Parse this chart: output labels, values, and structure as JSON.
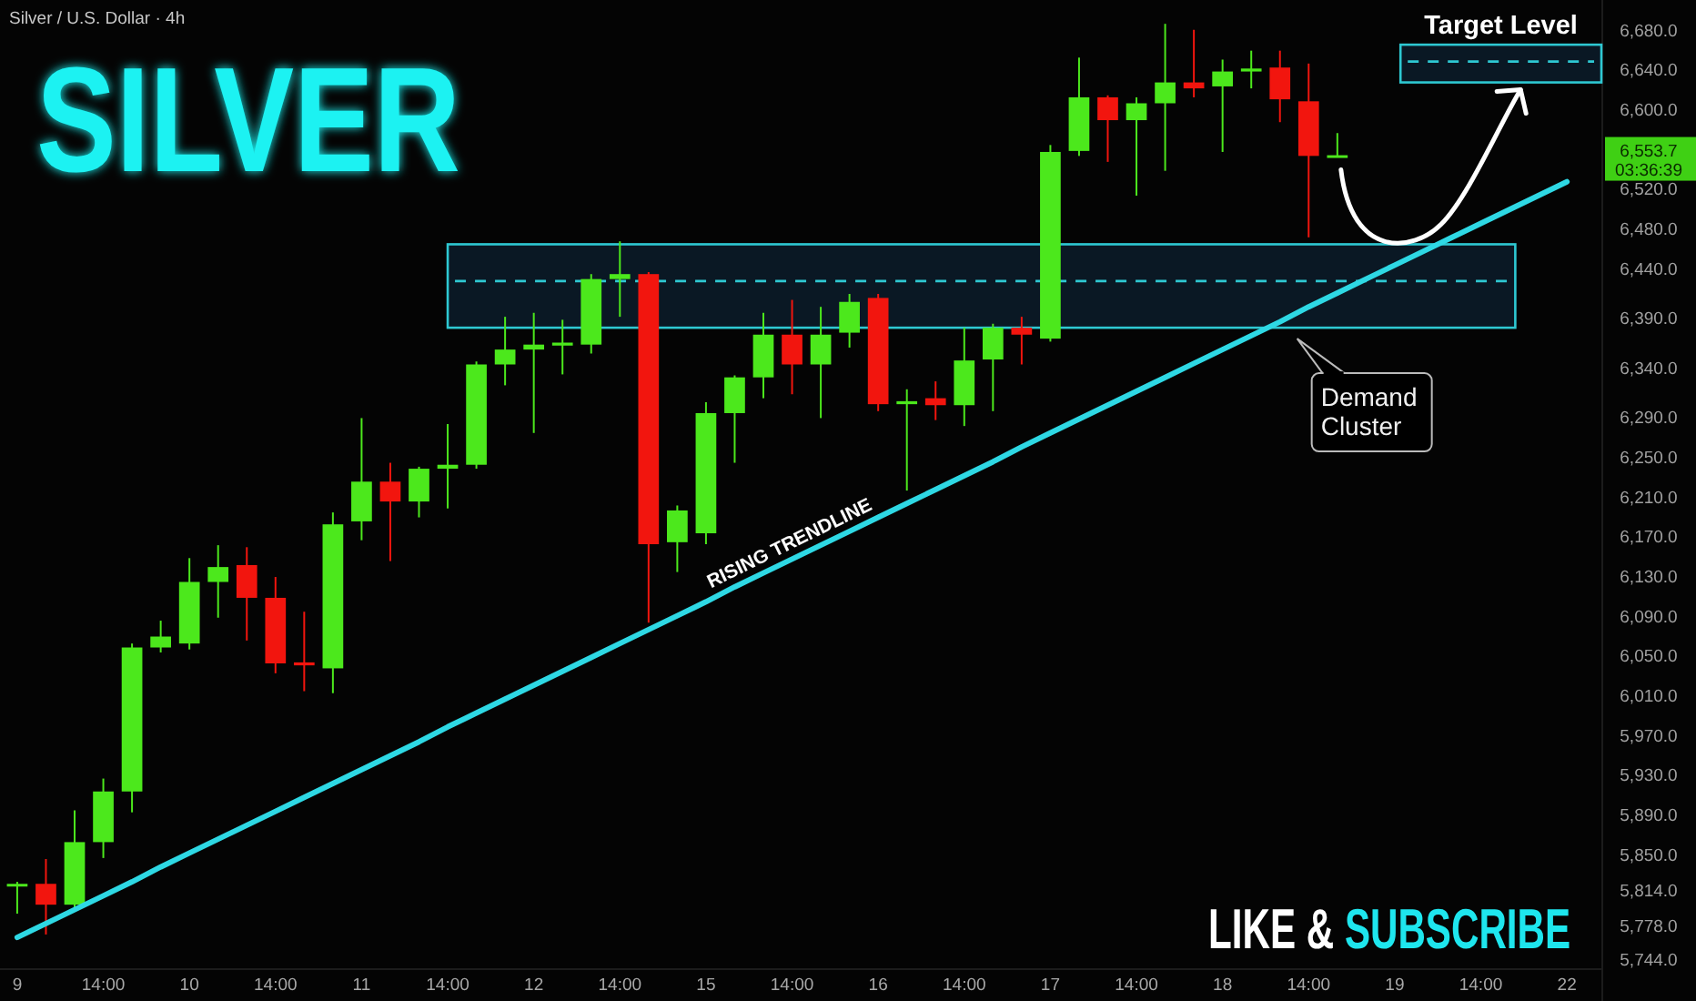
{
  "chart_data": {
    "type": "candlestick",
    "title": "SILVER",
    "subtitle": "Silver / U.S. Dollar · 4h",
    "categories": [
      "9",
      null,
      null,
      "14:00",
      null,
      null,
      "10",
      null,
      null,
      "14:00",
      null,
      null,
      "11",
      null,
      null,
      "14:00",
      null,
      null,
      "12",
      null,
      null,
      "14:00",
      null,
      null,
      "15",
      null,
      null,
      "14:00",
      null,
      null,
      "16",
      null,
      null,
      "14:00",
      null,
      null,
      "17",
      null,
      null,
      "14:00",
      null,
      null,
      "18",
      null,
      null,
      "14:00",
      null,
      null,
      "19",
      null,
      null,
      "14:00",
      null,
      null,
      "22"
    ],
    "ohlc": [
      [
        5818,
        5822,
        5790,
        5820
      ],
      [
        5820,
        5845,
        5769,
        5799
      ],
      [
        5799,
        5894,
        5792,
        5862
      ],
      [
        5862,
        5926,
        5846,
        5913
      ],
      [
        5913,
        6062,
        5892,
        6058
      ],
      [
        6058,
        6085,
        6053,
        6069
      ],
      [
        6062,
        6148,
        6056,
        6124
      ],
      [
        6124,
        6161,
        6088,
        6139
      ],
      [
        6141,
        6159,
        6065,
        6108
      ],
      [
        6108,
        6129,
        6032,
        6042
      ],
      [
        6043,
        6094,
        6014,
        6040
      ],
      [
        6037,
        6194,
        6012,
        6182
      ],
      [
        6185,
        6289,
        6166,
        6225
      ],
      [
        6225,
        6244,
        6145,
        6205
      ],
      [
        6205,
        6240,
        6189,
        6238
      ],
      [
        6238,
        6283,
        6198,
        6242
      ],
      [
        6242,
        6346,
        6238,
        6343
      ],
      [
        6343,
        6391,
        6322,
        6358
      ],
      [
        6358,
        6395,
        6274,
        6363
      ],
      [
        6362,
        6388,
        6333,
        6365
      ],
      [
        6363,
        6434,
        6354,
        6429
      ],
      [
        6429,
        6467,
        6391,
        6434
      ],
      [
        6434,
        6436,
        6083,
        6162
      ],
      [
        6164,
        6201,
        6134,
        6196
      ],
      [
        6173,
        6305,
        6162,
        6294
      ],
      [
        6294,
        6332,
        6244,
        6330
      ],
      [
        6330,
        6395,
        6309,
        6373
      ],
      [
        6373,
        6408,
        6313,
        6343
      ],
      [
        6343,
        6401,
        6289,
        6373
      ],
      [
        6375,
        6414,
        6360,
        6406
      ],
      [
        6410,
        6414,
        6296,
        6303
      ],
      [
        6303,
        6318,
        6216,
        6306
      ],
      [
        6309,
        6326,
        6287,
        6302
      ],
      [
        6302,
        6380,
        6281,
        6347
      ],
      [
        6348,
        6384,
        6296,
        6380
      ],
      [
        6380,
        6391,
        6343,
        6373
      ],
      [
        6369,
        6564,
        6366,
        6557
      ],
      [
        6558,
        6652,
        6553,
        6612
      ],
      [
        6612,
        6614,
        6547,
        6589
      ],
      [
        6589,
        6612,
        6513,
        6606
      ],
      [
        6606,
        6686,
        6538,
        6627
      ],
      [
        6627,
        6680,
        6612,
        6621
      ],
      [
        6623,
        6650,
        6557,
        6638
      ],
      [
        6638,
        6659,
        6621,
        6641
      ],
      [
        6642,
        6659,
        6587,
        6610
      ],
      [
        6608,
        6646,
        6471,
        6553
      ],
      [
        6553,
        6576,
        6552,
        6553.7
      ],
      null,
      null,
      null,
      null,
      null,
      null,
      null,
      null
    ],
    "colors": [
      "#4ce81c",
      "#f2150e",
      "#4ce81c",
      "#4ce81c",
      "#4ce81c",
      "#4ce81c",
      "#4ce81c",
      "#4ce81c",
      "#f2150e",
      "#f2150e",
      "#f2150e",
      "#4ce81c",
      "#4ce81c",
      "#f2150e",
      "#4ce81c",
      "#4ce81c",
      "#4ce81c",
      "#4ce81c",
      "#4ce81c",
      "#4ce81c",
      "#4ce81c",
      "#4ce81c",
      "#f2150e",
      "#4ce81c",
      "#4ce81c",
      "#4ce81c",
      "#4ce81c",
      "#f2150e",
      "#4ce81c",
      "#4ce81c",
      "#f2150e",
      "#4ce81c",
      "#f2150e",
      "#4ce81c",
      "#4ce81c",
      "#f2150e",
      "#4ce81c",
      "#4ce81c",
      "#f2150e",
      "#4ce81c",
      "#4ce81c",
      "#f2150e",
      "#4ce81c",
      "#4ce81c",
      "#f2150e",
      "#f2150e",
      "#4ce81c",
      null,
      null,
      null,
      null,
      null,
      null,
      null,
      null
    ],
    "series": [
      {
        "type": "line",
        "name": "RISING TRENDLINE",
        "color": "#2ed8e4",
        "values": [
          5766,
          5780,
          5794,
          5808,
          5822,
          5837,
          5851,
          5865,
          5879,
          5893,
          5907,
          5921,
          5935,
          5949,
          5963,
          5978,
          5992,
          6006,
          6020,
          6034,
          6048,
          6062,
          6076,
          6090,
          6104,
          6119,
          6133,
          6147,
          6161,
          6175,
          6189,
          6203,
          6217,
          6231,
          6245,
          6260,
          6274,
          6288,
          6302,
          6316,
          6330,
          6344,
          6358,
          6372,
          6386,
          6401,
          6415,
          6429,
          6443,
          6457,
          6471,
          6485,
          6499,
          6513,
          6527
        ]
      }
    ],
    "ylim": [
      5735,
      6710
    ],
    "yticks": [
      {
        "value": 6680,
        "label": "6,680.0"
      },
      {
        "value": 6640,
        "label": "6,640.0"
      },
      {
        "value": 6600,
        "label": "6,600.0"
      },
      {
        "value": 6520,
        "label": "6,520.0"
      },
      {
        "value": 6480,
        "label": "6,480.0"
      },
      {
        "value": 6440,
        "label": "6,440.0"
      },
      {
        "value": 6390,
        "label": "6,390.0"
      },
      {
        "value": 6340,
        "label": "6,340.0"
      },
      {
        "value": 6290,
        "label": "6,290.0"
      },
      {
        "value": 6250,
        "label": "6,250.0"
      },
      {
        "value": 6210,
        "label": "6,210.0"
      },
      {
        "value": 6170,
        "label": "6,170.0"
      },
      {
        "value": 6130,
        "label": "6,130.0"
      },
      {
        "value": 6090,
        "label": "6,090.0"
      },
      {
        "value": 6050,
        "label": "6,050.0"
      },
      {
        "value": 6010,
        "label": "6,010.0"
      },
      {
        "value": 5970,
        "label": "5,970.0"
      },
      {
        "value": 5930,
        "label": "5,930.0"
      },
      {
        "value": 5890,
        "label": "5,890.0"
      },
      {
        "value": 5850,
        "label": "5,850.0"
      },
      {
        "value": 5814,
        "label": "5,814.0"
      },
      {
        "value": 5778,
        "label": "5,778.0"
      },
      {
        "value": 5744,
        "label": "5,744.0"
      }
    ],
    "bands": [
      {
        "axis": "y",
        "from": 6380,
        "to": 6464,
        "label": "Demand Cluster",
        "color": "#2ec8d2"
      },
      {
        "axis": "y",
        "from": 6627,
        "to": 6665,
        "label": "Target Level",
        "color": "#2ec8d2"
      }
    ],
    "ref_lines": [
      {
        "axis": "y",
        "value": 6427,
        "color": "#2ec8d2",
        "line_style": "dashed"
      },
      {
        "axis": "y",
        "value": 6648,
        "color": "#2ec8d2",
        "line_style": "dashed"
      }
    ],
    "annotations": [
      "LIKE & SUBSCRIBE",
      "6,553.7",
      "03:36:39"
    ]
  }
}
